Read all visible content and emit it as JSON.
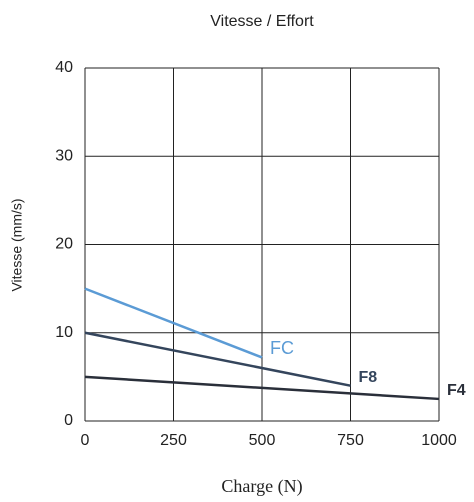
{
  "chart_data": {
    "type": "line",
    "title": "Vitesse / Effort",
    "x_label": "Charge (N)",
    "y_label": "Vitesse (mm/s)",
    "x": [
      0,
      500,
      750,
      1000
    ],
    "series": [
      {
        "name": "FC",
        "color": "#5b9bd5",
        "values": [
          15,
          7.2,
          null,
          null
        ]
      },
      {
        "name": "F8",
        "color": "#34455c",
        "values": [
          10,
          null,
          4,
          null
        ]
      },
      {
        "name": "F4",
        "color": "#2a2f3a",
        "values": [
          5,
          null,
          null,
          2.5
        ]
      }
    ],
    "xlim": [
      0,
      1000
    ],
    "xticks": [
      0,
      250,
      500,
      750,
      1000
    ],
    "ylim": [
      0,
      40
    ],
    "yticks": [
      0,
      10,
      20,
      30,
      40
    ],
    "grid": true
  }
}
